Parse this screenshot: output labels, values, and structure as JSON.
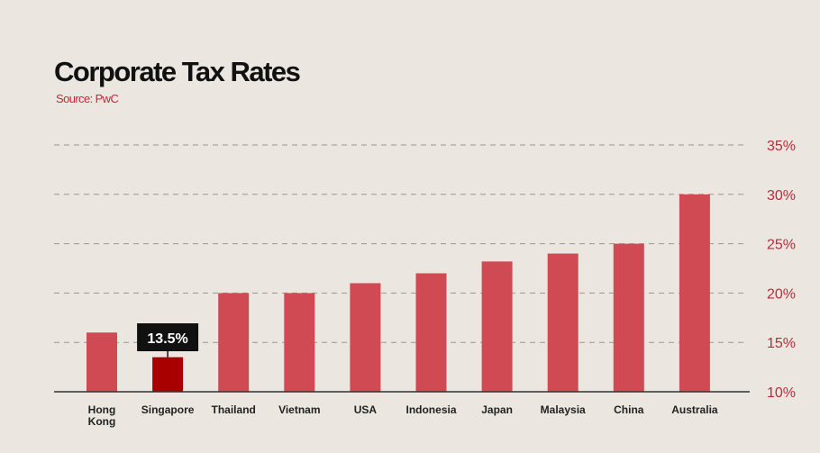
{
  "chart_data": {
    "type": "bar",
    "title": "Corporate Tax Rates",
    "subtitle": "Source: PwC",
    "categories": [
      "Hong Kong",
      "Singapore",
      "Thailand",
      "Vietnam",
      "USA",
      "Indonesia",
      "Japan",
      "Malaysia",
      "China",
      "Australia"
    ],
    "values": [
      16,
      13.5,
      20,
      20,
      21,
      22,
      23.2,
      24,
      25,
      30
    ],
    "highlight": {
      "category": "Singapore",
      "label": "13.5%"
    },
    "ylim": [
      10,
      35
    ],
    "yticks": [
      "10%",
      "15%",
      "20%",
      "25%",
      "30%",
      "35%"
    ],
    "ytick_values": [
      10,
      15,
      20,
      25,
      30,
      35
    ],
    "grid": true,
    "yaxis_position": "right",
    "colors": {
      "bar": "#cf4a52",
      "highlight": "#a80000",
      "tick_text": "#c0283a"
    }
  }
}
